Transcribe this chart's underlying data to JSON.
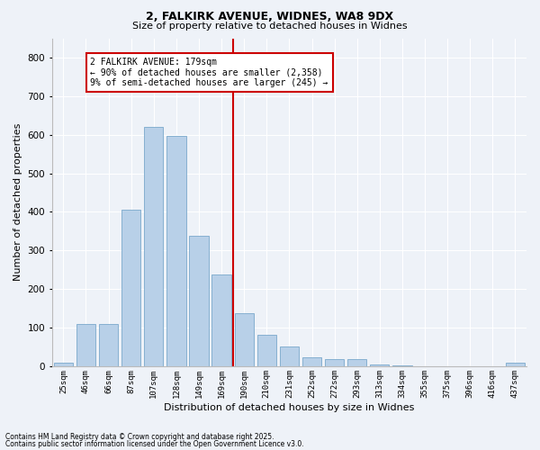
{
  "title1": "2, FALKIRK AVENUE, WIDNES, WA8 9DX",
  "title2": "Size of property relative to detached houses in Widnes",
  "xlabel": "Distribution of detached houses by size in Widnes",
  "ylabel": "Number of detached properties",
  "bar_labels": [
    "25sqm",
    "46sqm",
    "66sqm",
    "87sqm",
    "107sqm",
    "128sqm",
    "149sqm",
    "169sqm",
    "190sqm",
    "210sqm",
    "231sqm",
    "252sqm",
    "272sqm",
    "293sqm",
    "313sqm",
    "334sqm",
    "355sqm",
    "375sqm",
    "396sqm",
    "416sqm",
    "437sqm"
  ],
  "bar_values": [
    8,
    110,
    110,
    405,
    620,
    598,
    338,
    238,
    138,
    82,
    52,
    22,
    18,
    18,
    5,
    2,
    0,
    0,
    0,
    0,
    10
  ],
  "bar_color": "#b8d0e8",
  "bar_edge_color": "#7aa8cc",
  "vline_color": "#cc0000",
  "annotation_text": "2 FALKIRK AVENUE: 179sqm\n← 90% of detached houses are smaller (2,358)\n9% of semi-detached houses are larger (245) →",
  "annotation_box_color": "#ffffff",
  "annotation_box_edge": "#cc0000",
  "ylim": [
    0,
    850
  ],
  "yticks": [
    0,
    100,
    200,
    300,
    400,
    500,
    600,
    700,
    800
  ],
  "background_color": "#eef2f8",
  "grid_color": "#ffffff",
  "footer1": "Contains HM Land Registry data © Crown copyright and database right 2025.",
  "footer2": "Contains public sector information licensed under the Open Government Licence v3.0."
}
